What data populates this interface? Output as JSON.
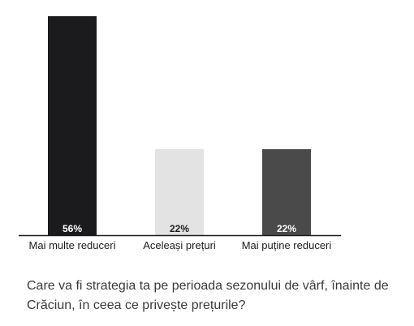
{
  "chart_data": {
    "type": "bar",
    "categories": [
      "Mai multe reduceri",
      "Aceleași prețuri",
      "Mai puține reduceri"
    ],
    "values": [
      56,
      22,
      22
    ],
    "value_labels": [
      "56%",
      "22%",
      "22%"
    ],
    "unit": "%",
    "ylim": [
      0,
      56
    ],
    "grid": false,
    "legend": "none",
    "colors": [
      "#1b1b1d",
      "#e3e3e3",
      "#4a4a4a"
    ],
    "label_colors": [
      "#ffffff",
      "#1b1b1d",
      "#ffffff"
    ],
    "axis_color": "#1b1b1d"
  },
  "question": "Care va fi strategia ta pe perioada sezonului de vârf, înainte de Crăciun, în ceea ce privește prețurile?"
}
